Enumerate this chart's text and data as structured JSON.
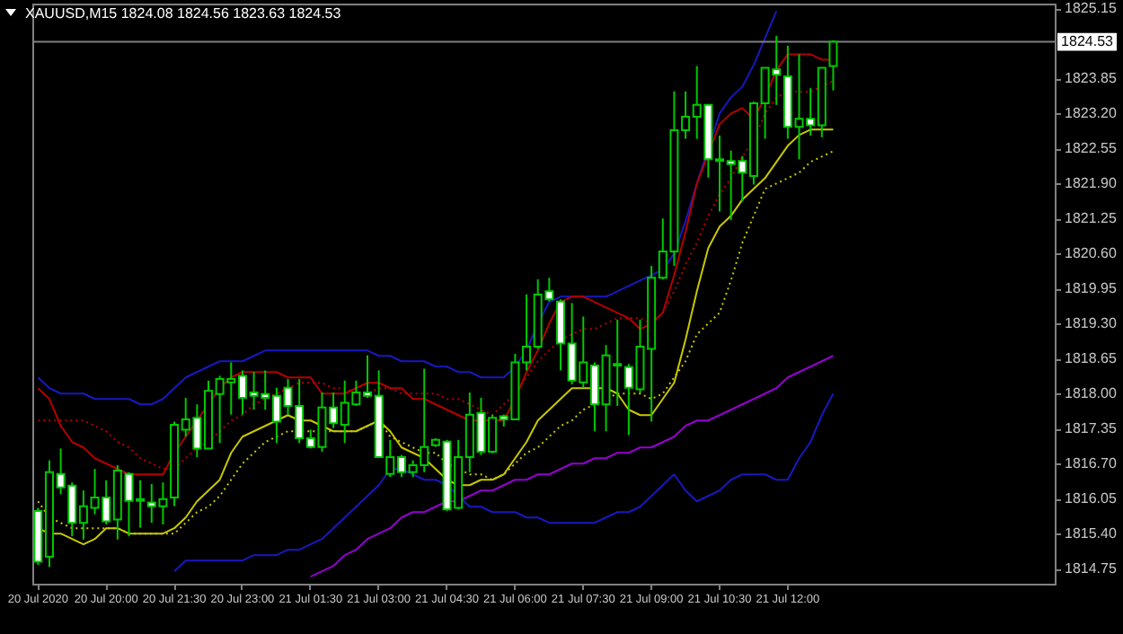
{
  "chart_data": {
    "type": "candlestick",
    "title": "XAUUSD,M15  1824.08 1824.56 1823.63 1824.53",
    "categories": [
      "20 Jul 2020",
      null,
      null,
      null,
      null,
      null,
      "20 Jul 20:00",
      null,
      null,
      null,
      null,
      null,
      "20 Jul 21:30",
      null,
      null,
      null,
      null,
      null,
      "20 Jul 23:00",
      null,
      null,
      null,
      null,
      null,
      "21 Jul 01:30",
      null,
      null,
      null,
      null,
      null,
      "21 Jul 03:00",
      null,
      null,
      null,
      null,
      null,
      "21 Jul 04:30",
      null,
      null,
      null,
      null,
      null,
      "21 Jul 06:00",
      null,
      null,
      null,
      null,
      null,
      "21 Jul 07:30",
      null,
      null,
      null,
      null,
      null,
      "21 Jul 09:00",
      null,
      null,
      null,
      null,
      null,
      "21 Jul 10:30",
      null,
      null,
      null,
      null,
      null,
      "21 Jul 12:00",
      null,
      null,
      null,
      null
    ],
    "ohlc": [
      [
        1815.82,
        1815.88,
        1814.82,
        1814.88
      ],
      [
        1814.97,
        1816.76,
        1814.78,
        1816.54
      ],
      [
        1816.51,
        1816.98,
        1816.13,
        1816.26
      ],
      [
        1816.29,
        1816.35,
        1815.35,
        1815.6
      ],
      [
        1815.6,
        1816.2,
        1815.29,
        1815.91
      ],
      [
        1815.88,
        1816.6,
        1815.76,
        1816.07
      ],
      [
        1816.07,
        1816.39,
        1815.57,
        1815.63
      ],
      [
        1815.66,
        1816.67,
        1815.29,
        1816.57
      ],
      [
        1816.51,
        1816.54,
        1815.35,
        1816.01
      ],
      [
        1816.01,
        1816.39,
        1815.51,
        1816.04
      ],
      [
        1815.98,
        1816.32,
        1815.6,
        1815.91
      ],
      [
        1815.91,
        1816.35,
        1815.57,
        1816.04
      ],
      [
        1816.07,
        1817.48,
        1815.91,
        1817.42
      ],
      [
        1817.33,
        1817.92,
        1817.2,
        1817.52
      ],
      [
        1817.55,
        1817.8,
        1816.82,
        1816.98
      ],
      [
        1816.98,
        1818.24,
        1816.98,
        1818.05
      ],
      [
        1817.99,
        1818.33,
        1817.08,
        1818.27
      ],
      [
        1818.21,
        1818.58,
        1817.61,
        1818.27
      ],
      [
        1818.33,
        1818.43,
        1817.61,
        1817.92
      ],
      [
        1818.02,
        1818.4,
        1817.7,
        1817.96
      ],
      [
        1817.99,
        1818.43,
        1817.7,
        1817.92
      ],
      [
        1817.96,
        1818.11,
        1817.08,
        1817.48
      ],
      [
        1818.11,
        1818.27,
        1817.61,
        1817.77
      ],
      [
        1817.77,
        1818.27,
        1817.08,
        1817.17
      ],
      [
        1817.17,
        1817.33,
        1816.98,
        1817.01
      ],
      [
        1817.01,
        1818.02,
        1816.92,
        1817.74
      ],
      [
        1817.74,
        1818.02,
        1817.36,
        1817.45
      ],
      [
        1817.42,
        1818.24,
        1817.08,
        1817.83
      ],
      [
        1817.8,
        1818.24,
        1817.77,
        1818.02
      ],
      [
        1818.02,
        1818.71,
        1817.92,
        1817.96
      ],
      [
        1817.96,
        1818.43,
        1816.82,
        1816.82
      ],
      [
        1816.51,
        1817.14,
        1816.45,
        1816.82
      ],
      [
        1816.82,
        1816.86,
        1816.45,
        1816.54
      ],
      [
        1816.54,
        1816.76,
        1816.45,
        1816.67
      ],
      [
        1816.67,
        1818.46,
        1816.54,
        1817.01
      ],
      [
        1817.04,
        1817.17,
        1817.01,
        1817.14
      ],
      [
        1817.11,
        1817.14,
        1815.82,
        1815.85
      ],
      [
        1815.88,
        1817.14,
        1815.85,
        1816.82
      ],
      [
        1816.82,
        1818.02,
        1816.54,
        1817.61
      ],
      [
        1817.64,
        1817.92,
        1816.86,
        1816.92
      ],
      [
        1816.92,
        1817.61,
        1816.89,
        1817.55
      ],
      [
        1817.58,
        1817.61,
        1817.39,
        1817.52
      ],
      [
        1817.52,
        1818.74,
        1817.52,
        1818.58
      ],
      [
        1818.58,
        1819.84,
        1818.43,
        1818.87
      ],
      [
        1818.87,
        1820.12,
        1818.83,
        1819.84
      ],
      [
        1819.9,
        1820.15,
        1819.71,
        1819.75
      ],
      [
        1819.71,
        1819.75,
        1818.43,
        1818.93
      ],
      [
        1818.93,
        1819.68,
        1818.17,
        1818.24
      ],
      [
        1818.21,
        1819.43,
        1818.11,
        1818.58
      ],
      [
        1818.52,
        1818.58,
        1817.3,
        1817.8
      ],
      [
        1817.8,
        1818.9,
        1817.3,
        1818.71
      ],
      [
        1818.52,
        1819.37,
        1817.77,
        1818.55
      ],
      [
        1818.49,
        1818.55,
        1817.23,
        1818.11
      ],
      [
        1818.08,
        1819.37,
        1818.02,
        1818.87
      ],
      [
        1818.83,
        1820.37,
        1817.48,
        1820.15
      ],
      [
        1820.15,
        1821.25,
        1820.12,
        1820.64
      ],
      [
        1820.64,
        1823.61,
        1820.37,
        1822.89
      ],
      [
        1822.89,
        1823.61,
        1822.73,
        1823.14
      ],
      [
        1823.14,
        1824.08,
        1822.73,
        1823.36
      ],
      [
        1823.36,
        1823.36,
        1822.01,
        1822.35
      ],
      [
        1822.35,
        1822.79,
        1821.38,
        1822.32
      ],
      [
        1822.32,
        1822.51,
        1821.22,
        1822.26
      ],
      [
        1822.32,
        1822.41,
        1821.57,
        1822.1
      ],
      [
        1822.04,
        1823.42,
        1821.88,
        1823.39
      ],
      [
        1823.39,
        1824.05,
        1822.73,
        1824.05
      ],
      [
        1824.02,
        1824.64,
        1823.36,
        1823.92
      ],
      [
        1823.89,
        1824.46,
        1822.73,
        1822.95
      ],
      [
        1822.95,
        1824.3,
        1822.35,
        1823.1
      ],
      [
        1823.1,
        1823.67,
        1822.79,
        1822.98
      ],
      [
        1822.98,
        1824.05,
        1822.76,
        1824.05
      ],
      [
        1824.08,
        1824.56,
        1823.63,
        1824.53
      ]
    ],
    "series": [
      {
        "type": "line",
        "color": "#1818c0",
        "values": [
          1818.3,
          1818.1,
          1818.0,
          1818.0,
          1818.0,
          1817.9,
          1817.9,
          1817.9,
          1817.9,
          1817.8,
          1817.8,
          1817.9,
          1818.1,
          1818.3,
          1818.4,
          1818.5,
          1818.6,
          1818.6,
          1818.6,
          1818.7,
          1818.8,
          1818.8,
          1818.8,
          1818.8,
          1818.8,
          1818.8,
          1818.8,
          1818.8,
          1818.8,
          1818.8,
          1818.7,
          1818.7,
          1818.6,
          1818.6,
          1818.6,
          1818.5,
          1818.5,
          1818.4,
          1818.4,
          1818.3,
          1818.3,
          1818.3,
          1818.5,
          1818.8,
          1819.3,
          1819.7,
          1819.8,
          1819.8,
          1819.8,
          1819.8,
          1819.8,
          1819.9,
          1820.0,
          1820.1,
          1820.2,
          1820.3,
          1820.6,
          1821.2,
          1821.9,
          null,
          1823.2,
          1823.5,
          1823.7,
          1824.1,
          1824.6,
          1825.1,
          null,
          null,
          null,
          null,
          null
        ]
      },
      {
        "type": "line",
        "color": "#1818c0",
        "values": [
          null,
          null,
          null,
          null,
          null,
          null,
          null,
          null,
          null,
          null,
          null,
          null,
          1814.7,
          1814.9,
          1814.9,
          1814.9,
          1814.9,
          1814.9,
          1814.9,
          1815.0,
          1815.0,
          1815.0,
          1815.1,
          1815.1,
          1815.2,
          1815.3,
          1815.5,
          1815.7,
          1815.9,
          1816.1,
          1816.3,
          1816.6,
          1816.6,
          1816.5,
          1816.4,
          1816.4,
          1816.3,
          1816.1,
          1815.9,
          1815.9,
          1815.8,
          1815.8,
          1815.8,
          1815.7,
          1815.7,
          1815.6,
          1815.6,
          1815.6,
          1815.6,
          1815.6,
          1815.7,
          1815.8,
          1815.8,
          1815.9,
          1816.1,
          1816.3,
          1816.5,
          1816.2,
          1816.0,
          1816.1,
          1816.2,
          1816.4,
          1816.5,
          1816.5,
          1816.5,
          1816.4,
          1816.4,
          1816.8,
          1817.1,
          1817.6,
          1818.0
        ]
      },
      {
        "type": "line",
        "color": "#9400d0",
        "values": [
          null,
          null,
          null,
          null,
          null,
          null,
          null,
          null,
          null,
          null,
          null,
          null,
          null,
          null,
          null,
          null,
          null,
          null,
          null,
          null,
          null,
          null,
          null,
          null,
          1814.6,
          1814.7,
          1814.8,
          1815.0,
          1815.1,
          1815.3,
          1815.4,
          1815.5,
          1815.7,
          1815.8,
          1815.8,
          1815.9,
          1816.0,
          1816.0,
          1816.1,
          1816.2,
          1816.2,
          1816.3,
          1816.4,
          1816.4,
          1816.5,
          1816.5,
          1816.6,
          1816.7,
          1816.7,
          1816.8,
          1816.8,
          1816.9,
          1816.9,
          1817.0,
          1817.0,
          1817.1,
          1817.2,
          1817.4,
          1817.5,
          1817.5,
          1817.6,
          1817.7,
          1817.8,
          1817.9,
          1818.0,
          1818.1,
          1818.3,
          1818.4,
          1818.5,
          1818.6,
          1818.7
        ]
      },
      {
        "type": "line",
        "color": "#c8c800",
        "line_style": "dotted",
        "values": [
          1816.0,
          1815.7,
          1815.6,
          1815.5,
          1815.5,
          1815.5,
          1815.5,
          1815.5,
          1815.4,
          1815.4,
          1815.4,
          1815.4,
          1815.4,
          1815.6,
          1815.8,
          1815.9,
          1816.1,
          1816.4,
          1816.7,
          1816.9,
          1817.1,
          1817.2,
          1817.3,
          1817.3,
          1817.3,
          1817.3,
          1817.3,
          1817.3,
          1817.3,
          1817.4,
          1817.5,
          1817.2,
          1817.1,
          1817.0,
          1816.9,
          1816.9,
          1816.7,
          1816.6,
          1816.5,
          1816.5,
          1816.4,
          1816.5,
          1816.7,
          1816.9,
          1817.0,
          1817.2,
          1817.4,
          1817.5,
          1817.7,
          1817.8,
          1817.9,
          1818.0,
          1818.0,
          1818.0,
          1817.9,
          1818.0,
          1818.3,
          1818.6,
          1819.1,
          1819.3,
          1819.5,
          1820.1,
          1820.8,
          1821.3,
          1821.8,
          1821.9,
          1822.0,
          1822.1,
          1822.3,
          1822.4,
          1822.5
        ]
      },
      {
        "type": "line",
        "color": "#c8c800",
        "values": [
          1815.5,
          1815.4,
          1815.4,
          1815.3,
          1815.2,
          1815.3,
          1815.5,
          1815.5,
          1815.4,
          1815.4,
          1815.4,
          1815.4,
          1815.5,
          1815.7,
          1816.0,
          1816.2,
          1816.4,
          1816.9,
          1817.2,
          1817.3,
          1817.4,
          1817.5,
          1817.6,
          1817.5,
          1817.5,
          1817.4,
          1817.3,
          1817.3,
          1817.3,
          1817.4,
          1817.5,
          1817.3,
          1817.0,
          1816.9,
          1816.8,
          1816.6,
          1816.4,
          1816.3,
          1816.3,
          1816.4,
          1816.4,
          1816.5,
          1816.8,
          1817.1,
          1817.5,
          1817.7,
          1817.9,
          1818.1,
          1818.1,
          1818.1,
          1818.1,
          1818.0,
          1817.7,
          1817.6,
          1817.6,
          1817.9,
          1818.2,
          1819.0,
          1819.9,
          1820.7,
          1821.1,
          1821.3,
          1821.6,
          1821.8,
          1822.0,
          1822.3,
          1822.6,
          1822.8,
          1822.9,
          1822.9,
          1822.9
        ]
      },
      {
        "type": "line",
        "color": "#b40000",
        "line_style": "dotted",
        "values": [
          1817.5,
          1817.5,
          1817.5,
          1817.5,
          1817.5,
          1817.4,
          1817.3,
          1817.1,
          1817.0,
          1816.8,
          1816.7,
          1816.6,
          1816.6,
          1816.8,
          1817.0,
          1817.1,
          1817.3,
          1817.5,
          1817.6,
          1817.8,
          1817.9,
          1818.0,
          1818.1,
          1818.2,
          1818.2,
          1818.2,
          1818.1,
          1818.1,
          1818.0,
          1818.0,
          1818.1,
          1818.1,
          1818.0,
          1818.0,
          1818.0,
          1818.0,
          1817.9,
          1817.9,
          1817.8,
          1817.7,
          1817.6,
          1817.8,
          1818.0,
          1818.3,
          1818.6,
          1818.8,
          1819.0,
          1819.1,
          1819.2,
          1819.2,
          1819.3,
          1819.4,
          1819.4,
          1819.4,
          1819.3,
          1819.5,
          1819.9,
          1820.4,
          1820.8,
          1821.3,
          1821.7,
          1822.0,
          1822.4,
          1822.7,
          1823.2,
          1823.5,
          1823.6,
          1823.6,
          1823.6,
          1823.7,
          1823.8
        ]
      },
      {
        "type": "line",
        "color": "#b40000",
        "values": [
          1818.1,
          1817.9,
          1817.4,
          1817.1,
          1817.0,
          1816.8,
          1816.7,
          1816.6,
          1816.5,
          1816.5,
          1816.5,
          1816.5,
          1816.9,
          1817.2,
          1817.5,
          1817.8,
          1818.1,
          1818.3,
          1818.4,
          1818.4,
          1818.4,
          1818.4,
          1818.3,
          1818.3,
          1818.3,
          1818.0,
          1818.0,
          1818.0,
          1818.1,
          1818.2,
          1818.2,
          1818.1,
          1818.1,
          1817.9,
          1817.9,
          1817.8,
          1817.7,
          1817.6,
          1817.5,
          1817.5,
          1817.5,
          1817.5,
          1817.9,
          1818.4,
          1818.8,
          1819.3,
          1819.7,
          1819.8,
          1819.8,
          1819.7,
          1819.6,
          1819.5,
          1819.4,
          1819.2,
          1819.3,
          1819.5,
          1820.2,
          1821.0,
          1821.9,
          null,
          1823.0,
          1823.2,
          1823.3,
          1823.1,
          1823.5,
          1824.0,
          1824.3,
          1824.3,
          1824.3,
          1824.2,
          1824.2
        ]
      }
    ],
    "ylim": [
      1814.47,
      1825.24
    ],
    "yticks": [
      1825.15,
      1823.85,
      {
        "value": 1823.2,
        "label": "1823.20"
      },
      1822.55,
      {
        "value": 1821.9,
        "label": "1821.90"
      },
      1821.25,
      {
        "value": 1820.6,
        "label": "1820.60"
      },
      1819.95,
      {
        "value": 1819.3,
        "label": "1819.30"
      },
      1818.65,
      {
        "value": 1818.0,
        "label": "1818.00"
      },
      1817.35,
      {
        "value": 1816.7,
        "label": "1816.70"
      },
      1816.05,
      {
        "value": 1815.4,
        "label": "1815.40"
      },
      1814.75
    ],
    "ref_lines": [
      {
        "axis": "y",
        "value": 1824.53,
        "label": "1824.53",
        "color": "#808080"
      }
    ]
  }
}
